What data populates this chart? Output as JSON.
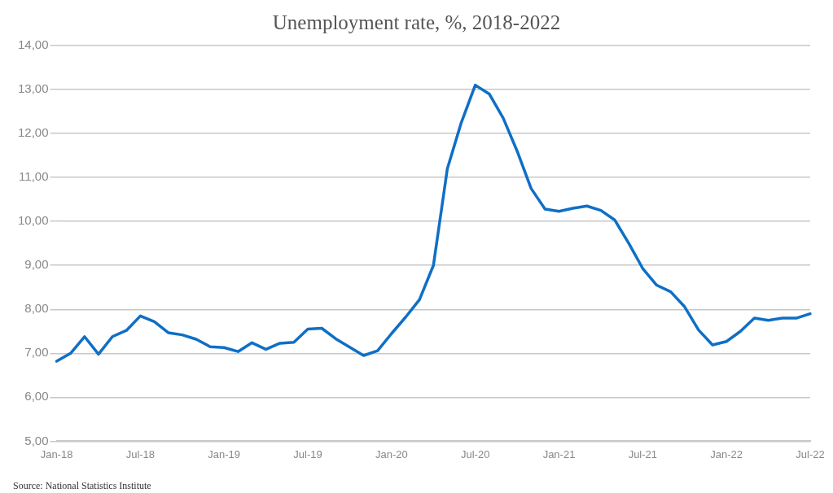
{
  "chart_data": {
    "type": "line",
    "title": "Unemployment rate, %, 2018-2022",
    "categories": [
      "Jan-18",
      null,
      null,
      null,
      null,
      null,
      "Jul-18",
      null,
      null,
      null,
      null,
      null,
      "Jan-19",
      null,
      null,
      null,
      null,
      null,
      "Jul-19",
      null,
      null,
      null,
      null,
      null,
      "Jan-20",
      null,
      null,
      null,
      null,
      null,
      "Jul-20",
      null,
      null,
      null,
      null,
      null,
      "Jan-21",
      null,
      null,
      null,
      null,
      null,
      "Jul-21",
      null,
      null,
      null,
      null,
      null,
      "Jan-22",
      null,
      null,
      null,
      null,
      null,
      "Jul-22"
    ],
    "series": [
      {
        "color": "#0f6fc6",
        "values": [
          6.82,
          7.0,
          7.38,
          6.98,
          7.38,
          7.52,
          7.85,
          7.72,
          7.47,
          7.42,
          7.32,
          7.15,
          7.13,
          7.04,
          7.24,
          7.09,
          7.23,
          7.25,
          7.55,
          7.57,
          7.33,
          7.14,
          6.95,
          7.06,
          7.45,
          7.82,
          8.22,
          9.0,
          11.2,
          12.25,
          13.1,
          12.9,
          12.35,
          11.6,
          10.75,
          10.28,
          10.23,
          10.3,
          10.35,
          10.25,
          10.03,
          9.5,
          8.93,
          8.55,
          8.4,
          8.06,
          7.53,
          7.19,
          7.27,
          7.5,
          7.8,
          7.75,
          7.8,
          7.8,
          7.9
        ]
      }
    ],
    "ylim": [
      5,
      14
    ],
    "yticks": [
      {
        "value": 5,
        "label": "5,00"
      },
      {
        "value": 6,
        "label": "6,00"
      },
      {
        "value": 7,
        "label": "7,00"
      },
      {
        "value": 8,
        "label": "8,00"
      },
      {
        "value": 9,
        "label": "9,00"
      },
      {
        "value": 10,
        "label": "10,00"
      },
      {
        "value": 11,
        "label": "11,00"
      },
      {
        "value": 12,
        "label": "12,00"
      },
      {
        "value": 13,
        "label": "13,00"
      },
      {
        "value": 14,
        "label": "14,00"
      }
    ],
    "grid": "y",
    "legend": false,
    "marker": "none",
    "line_style": "solid",
    "annotations": [
      "Source: National Statistics Institute"
    ]
  }
}
